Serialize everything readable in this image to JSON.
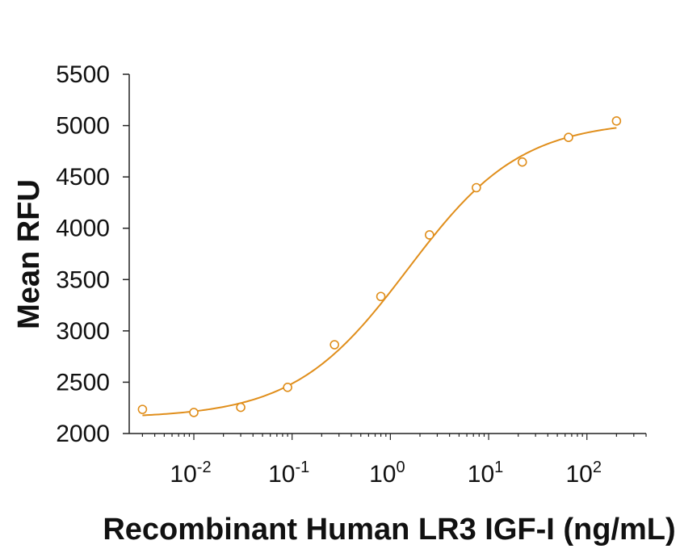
{
  "chart_data": {
    "type": "scatter",
    "title": "",
    "xlabel": "Recombinant Human LR3 IGF-I (ng/mL)",
    "ylabel": "Mean RFU",
    "x_scale": "log",
    "xlim": [
      0.0022,
      400
    ],
    "ylim": [
      2000,
      5500
    ],
    "grid": false,
    "legend": "none",
    "y_ticks": [
      2000,
      2500,
      3000,
      3500,
      4000,
      4500,
      5000,
      5500
    ],
    "y_tick_labels": [
      "2000",
      "2500",
      "3000",
      "3500",
      "4000",
      "4500",
      "5000",
      "5500"
    ],
    "x_major_ticks": [
      0.01,
      0.1,
      1,
      10,
      100
    ],
    "x_tick_labels": [
      {
        "base": "10",
        "exp": "-2"
      },
      {
        "base": "10",
        "exp": "-1"
      },
      {
        "base": "10",
        "exp": "0"
      },
      {
        "base": "10",
        "exp": "1"
      },
      {
        "base": "10",
        "exp": "2"
      }
    ],
    "series": [
      {
        "kind": "points",
        "marker": "open-circle",
        "color": "#E08E1B",
        "x": [
          0.003,
          0.01,
          0.03,
          0.09,
          0.27,
          0.8,
          2.5,
          7.5,
          22,
          65,
          200
        ],
        "y": [
          2235,
          2205,
          2255,
          2450,
          2865,
          3335,
          3935,
          4395,
          4645,
          4885,
          5045
        ]
      },
      {
        "kind": "fitted-curve",
        "color": "#E08E1B",
        "model": "4PL",
        "bottom": 2150,
        "top": 5050,
        "ec50": 1.5,
        "hill": 0.75,
        "x_range": [
          0.003,
          200
        ]
      }
    ]
  }
}
